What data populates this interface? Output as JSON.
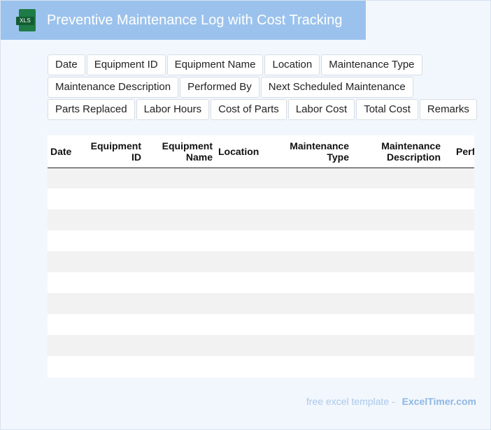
{
  "header": {
    "icon_label": "XLS",
    "title": "Preventive Maintenance Log with Cost Tracking"
  },
  "chips": [
    [
      "Date",
      "Equipment ID",
      "Equipment Name",
      "Location",
      "Maintenance Type"
    ],
    [
      "Maintenance Description",
      "Performed By",
      "Next Scheduled Maintenance"
    ],
    [
      "Parts Replaced",
      "Labor Hours",
      "Cost of Parts",
      "Labor Cost",
      "Total Cost",
      "Remarks"
    ]
  ],
  "table": {
    "columns": [
      {
        "line1": "Date",
        "line2": ""
      },
      {
        "line1": "Equipment",
        "line2": "ID"
      },
      {
        "line1": "Equipment",
        "line2": "Name"
      },
      {
        "line1": "Location",
        "line2": ""
      },
      {
        "line1": "Maintenance",
        "line2": "Type"
      },
      {
        "line1": "Maintenance",
        "line2": "Description"
      },
      {
        "line1": "Performed By",
        "line2": ""
      }
    ],
    "empty_rows": 10
  },
  "footer": {
    "prefix": "free excel template -",
    "brand": "ExcelTimer.com"
  },
  "colors": {
    "title_bar": "#9bc2ec",
    "background": "#f2f7fd",
    "stripe": "#f2f2f2",
    "icon_green": "#1e7b45"
  }
}
